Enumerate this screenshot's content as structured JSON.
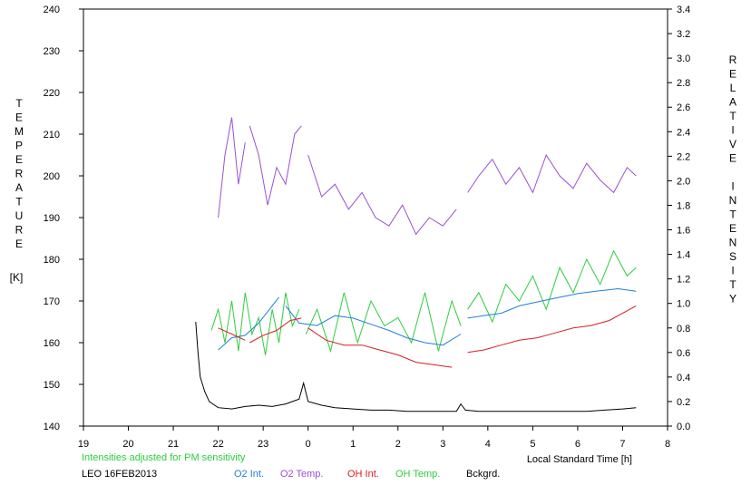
{
  "chart_data": {
    "type": "line",
    "x_axis": {
      "label": "Local Standard Time [h]",
      "ticks": [
        "19",
        "20",
        "21",
        "22",
        "23",
        "0",
        "1",
        "2",
        "3",
        "4",
        "5",
        "6",
        "7",
        "8"
      ],
      "range_hours": [
        19,
        32
      ]
    },
    "y_left": {
      "label_letters": [
        "T",
        "E",
        "M",
        "P",
        "E",
        "R",
        "A",
        "T",
        "U",
        "R",
        "E"
      ],
      "unit": "[K]",
      "ticks": [
        "140",
        "150",
        "160",
        "170",
        "180",
        "190",
        "200",
        "210",
        "220",
        "230",
        "240"
      ],
      "range": [
        140,
        240
      ]
    },
    "y_right": {
      "label_letters": [
        "R",
        "E",
        "L",
        "A",
        "T",
        "I",
        "V",
        "E",
        "",
        "I",
        "N",
        "T",
        "E",
        "N",
        "S",
        "I",
        "T",
        "Y"
      ],
      "ticks": [
        "0.0",
        "0.2",
        "0.4",
        "0.6",
        "0.8",
        "1.0",
        "1.2",
        "1.4",
        "1.6",
        "1.8",
        "2.0",
        "2.2",
        "2.4",
        "2.6",
        "2.8",
        "3.0",
        "3.2",
        "3.4"
      ],
      "range": [
        0,
        3.4
      ]
    },
    "notes": {
      "adjusted": "Intensities adjusted for PM sensitivity",
      "station_date": "LEO 16FEB2013"
    },
    "series": [
      {
        "name": "O2 Int.",
        "color": "#1f7fd6",
        "axis": "right",
        "segments": [
          {
            "x": [
              22.0,
              22.3,
              22.6,
              22.9,
              23.2,
              23.35
            ],
            "y": [
              0.62,
              0.72,
              0.74,
              0.84,
              0.98,
              1.05
            ]
          },
          {
            "x": [
              23.5,
              23.8,
              24.2,
              24.6,
              25.0,
              25.4,
              25.8,
              26.2,
              26.6,
              27.0,
              27.4
            ],
            "y": [
              0.98,
              0.84,
              0.82,
              0.9,
              0.88,
              0.83,
              0.78,
              0.72,
              0.68,
              0.66,
              0.75
            ]
          },
          {
            "x": [
              27.55,
              27.9,
              28.3,
              28.7,
              29.2,
              29.6,
              30.0,
              30.4,
              30.9,
              31.3
            ],
            "y": [
              0.88,
              0.9,
              0.92,
              0.98,
              1.02,
              1.05,
              1.08,
              1.1,
              1.12,
              1.1
            ]
          }
        ]
      },
      {
        "name": "O2 Temp.",
        "color": "#9b50d0",
        "axis": "left",
        "segments": [
          {
            "x": [
              22.0,
              22.15,
              22.3,
              22.45,
              22.6
            ],
            "y": [
              190,
              205,
              214,
              198,
              208
            ]
          },
          {
            "x": [
              22.7,
              22.9,
              23.1,
              23.3,
              23.5,
              23.7,
              23.85
            ],
            "y": [
              212,
              205,
              193,
              202,
              198,
              210,
              212
            ]
          },
          {
            "x": [
              24.0,
              24.3,
              24.6,
              24.9,
              25.2,
              25.5,
              25.8,
              26.1,
              26.4,
              26.7,
              27.0,
              27.3
            ],
            "y": [
              205,
              195,
              198,
              192,
              196,
              190,
              188,
              193,
              186,
              190,
              188,
              192
            ]
          },
          {
            "x": [
              27.55,
              27.8,
              28.1,
              28.4,
              28.7,
              29.0,
              29.3,
              29.6,
              29.9,
              30.2,
              30.5,
              30.8,
              31.1,
              31.3
            ],
            "y": [
              196,
              200,
              204,
              198,
              202,
              196,
              205,
              200,
              197,
              203,
              199,
              196,
              202,
              200
            ]
          }
        ]
      },
      {
        "name": "OH Int.",
        "color": "#d81e1e",
        "axis": "right",
        "segments": [
          {
            "x": [
              22.0,
              22.3,
              22.6
            ],
            "y": [
              0.8,
              0.75,
              0.7
            ]
          },
          {
            "x": [
              22.7,
              23.0,
              23.3,
              23.6,
              23.85
            ],
            "y": [
              0.68,
              0.74,
              0.78,
              0.86,
              0.88
            ]
          },
          {
            "x": [
              24.0,
              24.4,
              24.8,
              25.2,
              25.6,
              26.0,
              26.4,
              26.8,
              27.2
            ],
            "y": [
              0.8,
              0.7,
              0.66,
              0.66,
              0.62,
              0.58,
              0.52,
              0.5,
              0.48
            ]
          },
          {
            "x": [
              27.55,
              27.9,
              28.3,
              28.7,
              29.1,
              29.5,
              29.9,
              30.3,
              30.7,
              31.1,
              31.3
            ],
            "y": [
              0.6,
              0.62,
              0.66,
              0.7,
              0.72,
              0.76,
              0.8,
              0.82,
              0.86,
              0.94,
              0.98
            ]
          }
        ]
      },
      {
        "name": "OH Temp.",
        "color": "#2ecc40",
        "axis": "left",
        "segments": [
          {
            "x": [
              21.85,
              22.0,
              22.15,
              22.3,
              22.45,
              22.6,
              22.75,
              22.9,
              23.05,
              23.2,
              23.35,
              23.5,
              23.65,
              23.8
            ],
            "y": [
              163,
              168,
              160,
              170,
              158,
              172,
              162,
              166,
              157,
              168,
              160,
              172,
              164,
              168
            ]
          },
          {
            "x": [
              23.95,
              24.2,
              24.5,
              24.8,
              25.1,
              25.4,
              25.7,
              26.0,
              26.3,
              26.6,
              26.9,
              27.2,
              27.4
            ],
            "y": [
              162,
              168,
              158,
              172,
              160,
              170,
              164,
              166,
              160,
              172,
              158,
              170,
              164
            ]
          },
          {
            "x": [
              27.55,
              27.8,
              28.1,
              28.4,
              28.7,
              29.0,
              29.3,
              29.6,
              29.9,
              30.2,
              30.5,
              30.8,
              31.1,
              31.3
            ],
            "y": [
              168,
              172,
              165,
              174,
              170,
              176,
              168,
              178,
              172,
              180,
              174,
              182,
              176,
              178
            ]
          }
        ]
      },
      {
        "name": "Bckgrd.",
        "color": "#000000",
        "axis": "right",
        "segments": [
          {
            "x": [
              21.5,
              21.55,
              21.6,
              21.7,
              21.8,
              22.0,
              22.3,
              22.6,
              22.9,
              23.2,
              23.5,
              23.8,
              23.9,
              24.0,
              24.3,
              24.6,
              25.0,
              25.4,
              25.8,
              26.2,
              26.6,
              27.0,
              27.3,
              27.4,
              27.5,
              27.8,
              28.2,
              28.6,
              29.0,
              29.4,
              29.8,
              30.2,
              30.6,
              31.0,
              31.3
            ],
            "y": [
              0.85,
              0.6,
              0.4,
              0.28,
              0.2,
              0.15,
              0.14,
              0.16,
              0.17,
              0.16,
              0.18,
              0.22,
              0.35,
              0.2,
              0.17,
              0.15,
              0.14,
              0.13,
              0.13,
              0.12,
              0.12,
              0.12,
              0.12,
              0.18,
              0.13,
              0.12,
              0.12,
              0.12,
              0.12,
              0.12,
              0.12,
              0.12,
              0.13,
              0.14,
              0.15
            ]
          }
        ]
      }
    ]
  }
}
